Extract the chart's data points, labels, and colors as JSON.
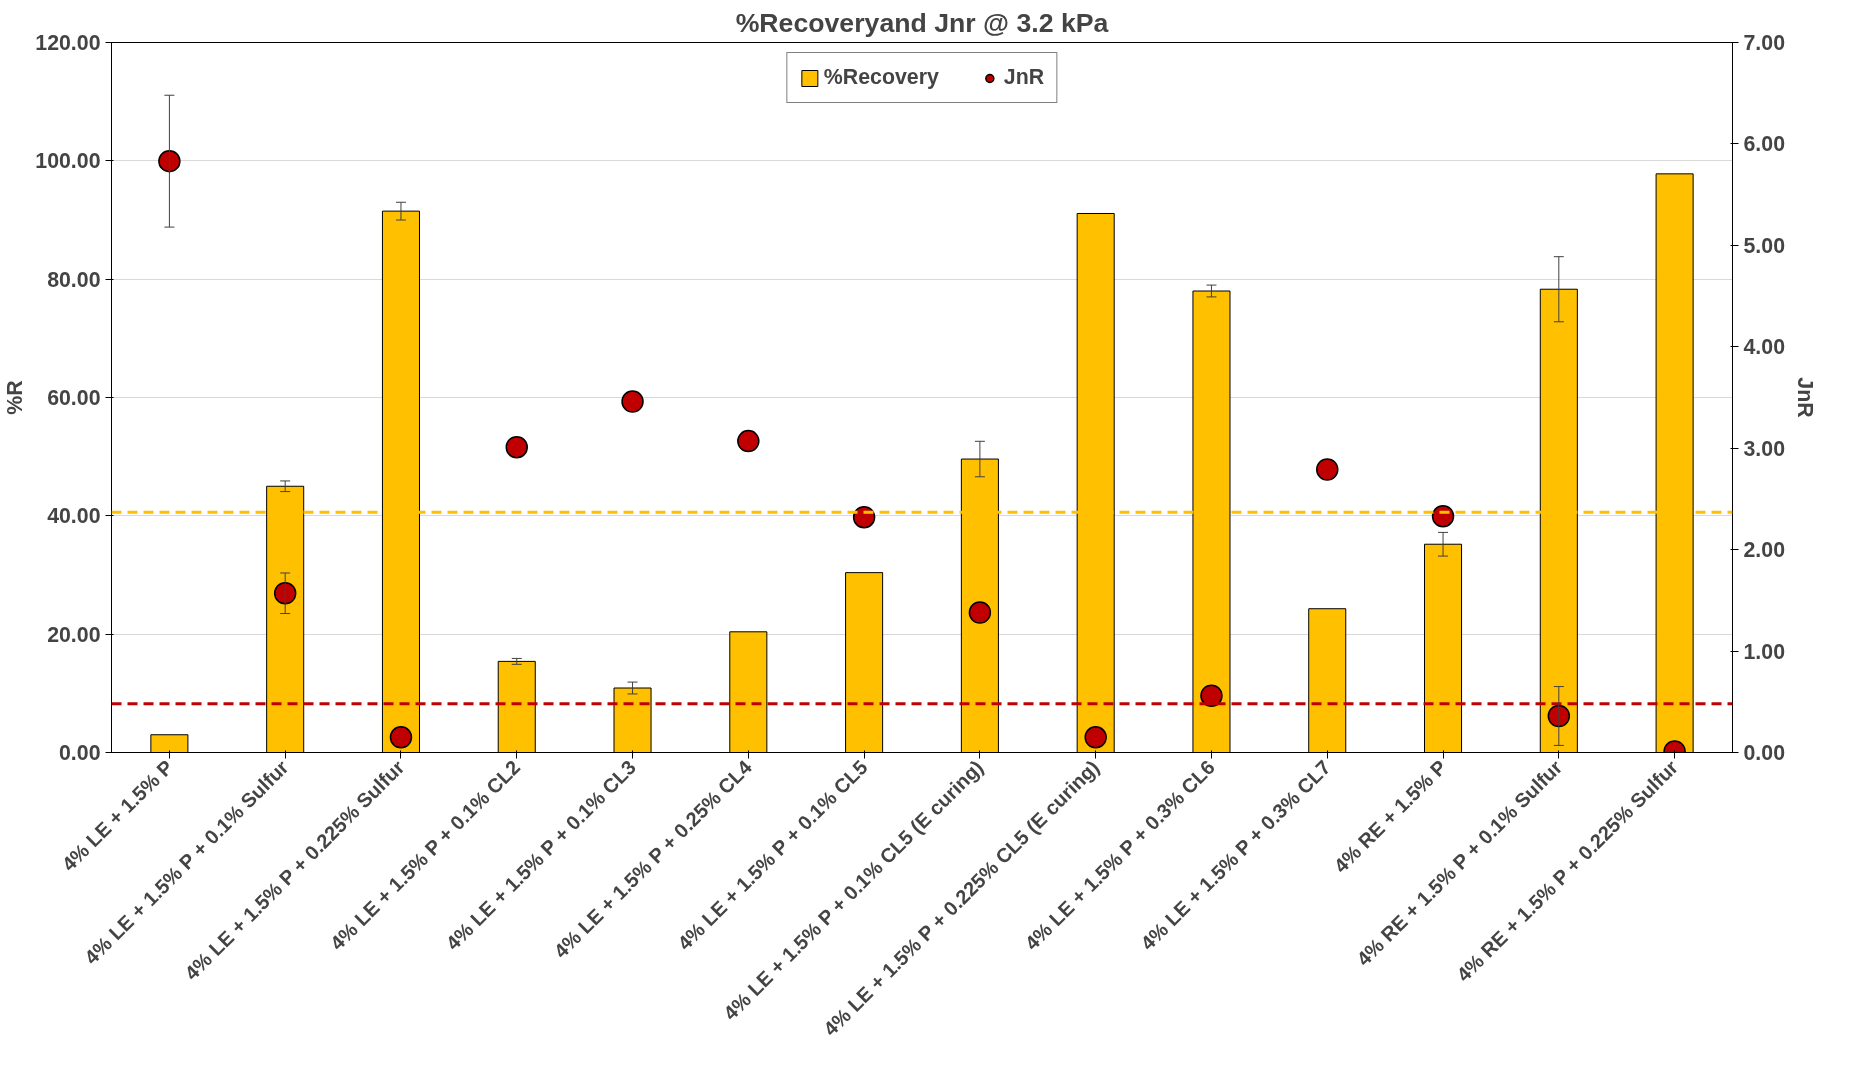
{
  "chart_data": {
    "type": "bar",
    "title": "%Recoveryand Jnr @ 3.2 kPa",
    "ylabel": "%R",
    "y2label": "JnR",
    "categories": [
      "4% LE + 1.5% P",
      "4% LE + 1.5% P + 0.1% Sulfur",
      "4% LE + 1.5% P + 0.225% Sulfur",
      "4% LE + 1.5% P + 0.1% CL2",
      "4% LE + 1.5% P + 0.1% CL3",
      "4% LE + 1.5% P + 0.25% CL4",
      "4% LE + 1.5% P + 0.1% CL5",
      "4% LE + 1.5% P + 0.1% CL5 (E curing)",
      "4% LE + 1.5% P + 0.225% CL5 (E curing)",
      "4% LE + 1.5% P + 0.3% CL6",
      "4% LE + 1.5% P + 0.3% CL7",
      "4% RE + 1.5% P",
      "4% RE + 1.5% P + 0.1% Sulfur",
      "4% RE + 1.5% P + 0.225% Sulfur"
    ],
    "series": [
      {
        "name": "%Recovery",
        "color": "#ffc000",
        "values": [
          3.0,
          45.0,
          91.5,
          15.4,
          10.9,
          20.4,
          30.4,
          49.6,
          91.1,
          78.0,
          24.3,
          35.2,
          78.3,
          97.8
        ],
        "errors": [
          null,
          0.9,
          1.5,
          0.5,
          1.0,
          null,
          null,
          3.0,
          null,
          1.0,
          null,
          2.0,
          5.5,
          null
        ]
      },
      {
        "name": "JnR",
        "type": "scatter",
        "axis": "y2",
        "color": "#c00000",
        "marker": "circle",
        "values": [
          5.83,
          1.57,
          0.15,
          3.01,
          3.46,
          3.07,
          2.32,
          1.38,
          0.15,
          0.56,
          2.79,
          2.33,
          0.36,
          0.01
        ],
        "errors": [
          0.65,
          0.2,
          null,
          null,
          null,
          null,
          null,
          null,
          null,
          null,
          null,
          null,
          0.29,
          null
        ]
      }
    ],
    "ylim": [
      0,
      120
    ],
    "yticks": [
      {
        "value": 0,
        "label": "0.00"
      },
      {
        "value": 20,
        "label": "20.00"
      },
      {
        "value": 40,
        "label": "40.00"
      },
      {
        "value": 60,
        "label": "60.00"
      },
      {
        "value": 80,
        "label": "80.00"
      },
      {
        "value": 100,
        "label": "100.00"
      },
      {
        "value": 120,
        "label": "120.00"
      }
    ],
    "y2lim": [
      0,
      7
    ],
    "y2ticks": [
      {
        "value": 0,
        "label": "0.00"
      },
      {
        "value": 1,
        "label": "1.00"
      },
      {
        "value": 2,
        "label": "2.00"
      },
      {
        "value": 3,
        "label": "3.00"
      },
      {
        "value": 4,
        "label": "4.00"
      },
      {
        "value": 5,
        "label": "5.00"
      },
      {
        "value": 6,
        "label": "6.00"
      },
      {
        "value": 7,
        "label": "7.00"
      }
    ],
    "ref_lines": [
      {
        "axis": "y",
        "value": 40.6,
        "color": "#ffc000",
        "line_style": "dashed"
      },
      {
        "axis": "y2",
        "value": 0.48,
        "color": "#c00000",
        "line_style": "dashed"
      }
    ],
    "grid": "y",
    "legend": "top"
  }
}
